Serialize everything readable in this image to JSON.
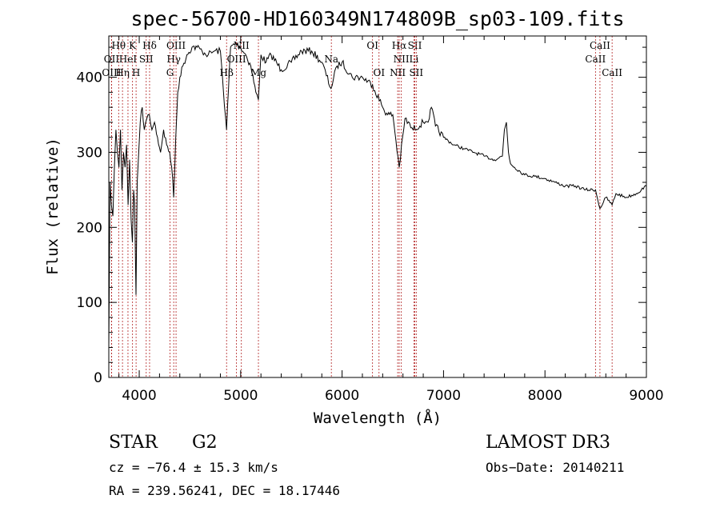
{
  "chart_data": {
    "type": "line",
    "title": "spec-56700-HD160349N174809B_sp03-109.fits",
    "xlabel": "Wavelength (Å)",
    "ylabel": "Flux (relative)",
    "xlim": [
      3700,
      9000
    ],
    "ylim": [
      0,
      455
    ],
    "xticks": [
      4000,
      5000,
      6000,
      7000,
      8000,
      9000
    ],
    "yticks": [
      0,
      100,
      200,
      300,
      400
    ],
    "series": [
      {
        "name": "spectrum",
        "x": [
          3700,
          3712,
          3725,
          3740,
          3755,
          3770,
          3785,
          3800,
          3815,
          3830,
          3845,
          3860,
          3875,
          3890,
          3905,
          3920,
          3933,
          3945,
          3955,
          3968,
          3980,
          3995,
          4010,
          4030,
          4050,
          4075,
          4100,
          4125,
          4150,
          4180,
          4210,
          4240,
          4270,
          4300,
          4320,
          4340,
          4360,
          4380,
          4400,
          4430,
          4470,
          4520,
          4570,
          4620,
          4680,
          4740,
          4800,
          4861,
          4900,
          4950,
          5000,
          5050,
          5100,
          5150,
          5175,
          5200,
          5250,
          5300,
          5400,
          5500,
          5600,
          5700,
          5800,
          5890,
          5950,
          6000,
          6100,
          6200,
          6300,
          6400,
          6450,
          6500,
          6563,
          6620,
          6700,
          6800,
          6860,
          6880,
          6920,
          7000,
          7100,
          7200,
          7300,
          7400,
          7500,
          7580,
          7600,
          7620,
          7640,
          7660,
          7700,
          7800,
          7900,
          8000,
          8100,
          8200,
          8300,
          8400,
          8498,
          8542,
          8600,
          8662,
          8700,
          8800,
          8900,
          8950,
          9000
        ],
        "y": [
          40,
          260,
          230,
          215,
          280,
          330,
          300,
          280,
          330,
          250,
          300,
          280,
          310,
          230,
          290,
          210,
          180,
          250,
          230,
          110,
          260,
          300,
          340,
          360,
          330,
          345,
          350,
          330,
          340,
          320,
          300,
          330,
          310,
          300,
          280,
          240,
          320,
          380,
          400,
          415,
          430,
          440,
          440,
          435,
          430,
          435,
          435,
          330,
          440,
          445,
          440,
          430,
          415,
          380,
          370,
          430,
          420,
          430,
          410,
          420,
          435,
          435,
          420,
          385,
          415,
          420,
          400,
          400,
          390,
          360,
          350,
          350,
          280,
          345,
          330,
          340,
          345,
          360,
          335,
          320,
          310,
          305,
          300,
          295,
          290,
          295,
          330,
          340,
          300,
          285,
          280,
          270,
          268,
          265,
          260,
          255,
          255,
          250,
          250,
          225,
          240,
          230,
          245,
          240,
          245,
          250,
          255
        ]
      }
    ],
    "line_markers": [
      {
        "label": "Hθ",
        "x": 3797,
        "row": 1
      },
      {
        "label": "OII",
        "x": 3727,
        "row": 2
      },
      {
        "label": "OIII",
        "x": 3727,
        "row": 3
      },
      {
        "label": "K",
        "x": 3934,
        "row": 1
      },
      {
        "label": "HeI",
        "x": 3889,
        "row": 2
      },
      {
        "label": "Hη",
        "x": 3835,
        "row": 3
      },
      {
        "label": "Hδ",
        "x": 4102,
        "row": 1
      },
      {
        "label": "SII",
        "x": 4069,
        "row": 2
      },
      {
        "label": "H",
        "x": 3969,
        "row": 3
      },
      {
        "label": "OIII",
        "x": 4363,
        "row": 1
      },
      {
        "label": "Hγ",
        "x": 4340,
        "row": 2
      },
      {
        "label": "G",
        "x": 4304,
        "row": 3
      },
      {
        "label": "NII",
        "x": 5007,
        "row": 1
      },
      {
        "label": "OIII",
        "x": 4959,
        "row": 2
      },
      {
        "label": "Hβ",
        "x": 4861,
        "row": 3
      },
      {
        "label": "Mg",
        "x": 5175,
        "row": 3
      },
      {
        "label": "Na",
        "x": 5894,
        "row": 2
      },
      {
        "label": "OI",
        "x": 6300,
        "row": 1
      },
      {
        "label": "OI",
        "x": 6364,
        "row": 3
      },
      {
        "label": "Hα",
        "x": 6563,
        "row": 1
      },
      {
        "label": "SII",
        "x": 6717,
        "row": 1
      },
      {
        "label": "NII",
        "x": 6584,
        "row": 2
      },
      {
        "label": "Li",
        "x": 6708,
        "row": 2
      },
      {
        "label": "NII",
        "x": 6548,
        "row": 3
      },
      {
        "label": "SII",
        "x": 6731,
        "row": 3
      },
      {
        "label": "CaII",
        "x": 8542,
        "row": 1
      },
      {
        "label": "CaII",
        "x": 8498,
        "row": 2
      },
      {
        "label": "CaII",
        "x": 8662,
        "row": 3
      }
    ]
  },
  "info": {
    "object_class": "STAR",
    "subclass": "G2",
    "survey": "LAMOST DR3",
    "redshift": "cz = −76.4 ± 15.3 km/s",
    "obs_date": "Obs−Date: 20140211",
    "coords": "RA = 239.56241, DEC =  18.17446"
  }
}
